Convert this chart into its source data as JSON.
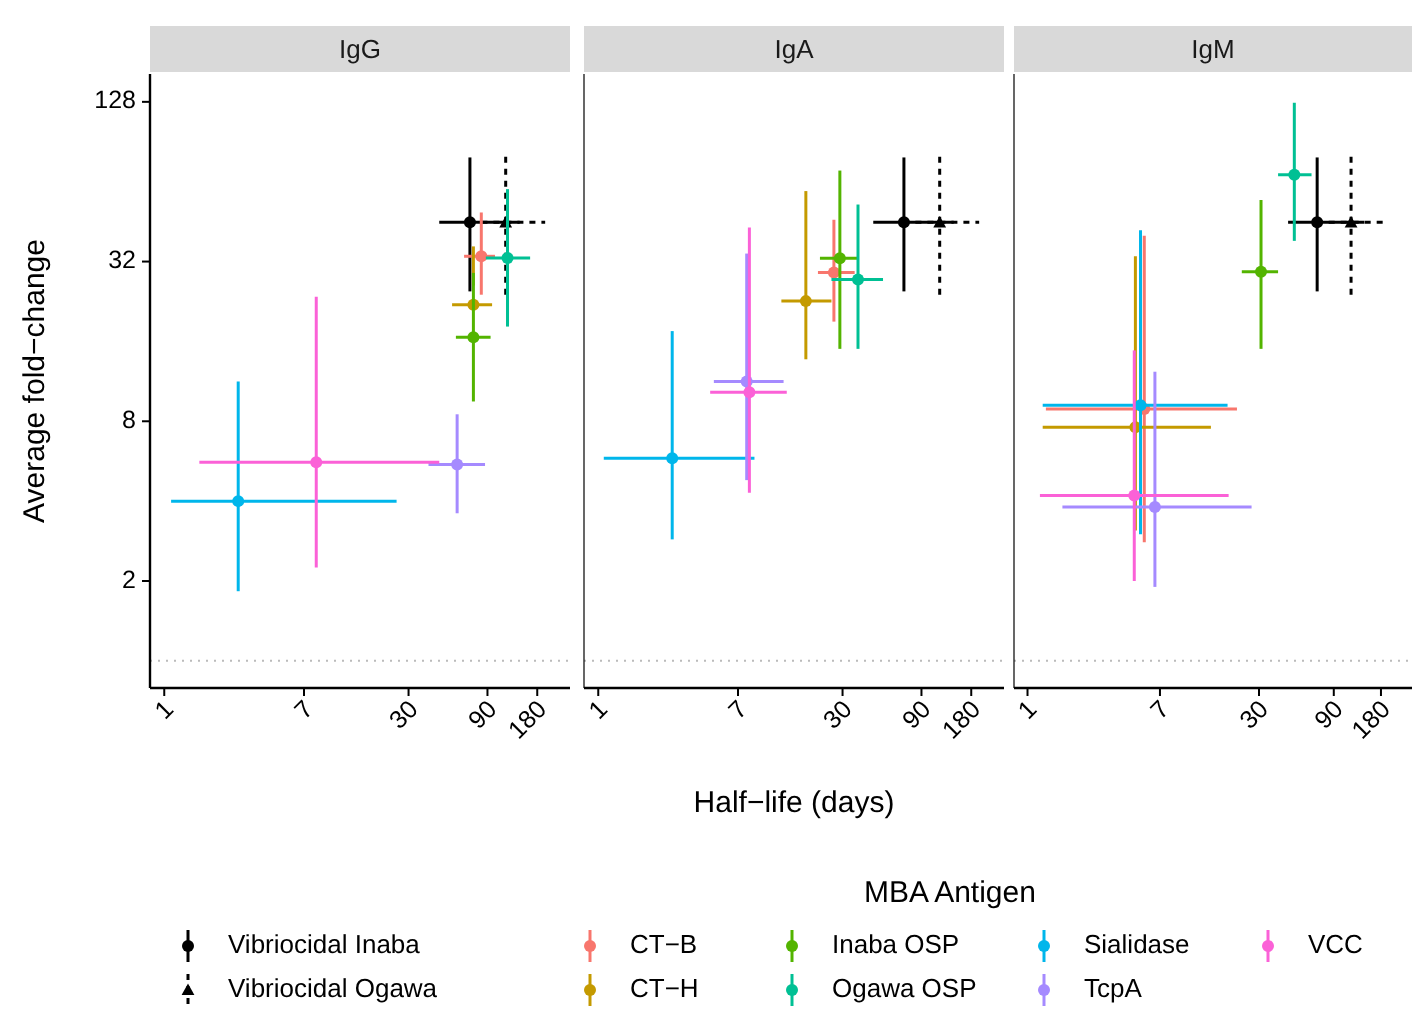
{
  "chart_data": [
    {
      "type": "scatter",
      "title": "IgG",
      "ylabel": "Average fold−change",
      "legend": "bottom",
      "legend_title": "MBA Antigen",
      "log": "xy",
      "marker": "circle",
      "line_style": "solid",
      "xlim": [
        0.82,
        284
      ],
      "xticks": [
        1,
        7,
        30,
        90,
        180
      ],
      "ylim": [
        0.79,
        163
      ],
      "yticks": [
        2,
        8,
        32,
        128
      ],
      "ref_lines": [
        {
          "axis": "y",
          "value": 1,
          "color": "#bbbbbb",
          "line_style": "dotted"
        }
      ],
      "series": [
        {
          "name": "Vibriocidal Inaba",
          "color": "#000000",
          "marker": "circle",
          "line_style": "solid",
          "x": [
            70.5
          ],
          "values": [
            45
          ],
          "xerrors": [
            [
              46,
              141
            ]
          ],
          "errors": [
            [
              24.7,
              79
            ]
          ]
        },
        {
          "name": "Vibriocidal Ogawa",
          "color": "#000000",
          "marker": "triangle",
          "line_style": "dashed",
          "x": [
            116
          ],
          "values": [
            45
          ],
          "xerrors": [
            [
              70,
              201
            ]
          ],
          "errors": [
            [
              24,
              82
            ]
          ]
        },
        {
          "name": "CT−B",
          "color": "#f8766d",
          "x": [
            82.6
          ],
          "values": [
            33.5
          ],
          "xerrors": [
            [
              65,
              100
            ]
          ],
          "errors": [
            [
              24,
              49
            ]
          ]
        },
        {
          "name": "CT−H",
          "color": "#c49a00",
          "x": [
            74
          ],
          "values": [
            22
          ],
          "xerrors": [
            [
              55,
              96
            ]
          ],
          "errors": [
            [
              26,
              36.5
            ]
          ]
        },
        {
          "name": "Inaba OSP",
          "color": "#53b400",
          "x": [
            74
          ],
          "values": [
            16.6
          ],
          "xerrors": [
            [
              58,
              94
            ]
          ],
          "errors": [
            [
              9.5,
              29
            ]
          ]
        },
        {
          "name": "Ogawa OSP",
          "color": "#00c094",
          "x": [
            119
          ],
          "values": [
            33
          ],
          "xerrors": [
            [
              88,
              163
            ]
          ],
          "errors": [
            [
              18.2,
              60
            ]
          ]
        },
        {
          "name": "Sialidase",
          "color": "#00b6eb",
          "x": [
            2.8
          ],
          "values": [
            4
          ],
          "xerrors": [
            [
              1.1,
              25.4
            ]
          ],
          "errors": [
            [
              1.83,
              11.3
            ]
          ]
        },
        {
          "name": "TcpA",
          "color": "#a58aff",
          "x": [
            59
          ],
          "values": [
            5.5
          ],
          "xerrors": [
            [
              39.6,
              87
            ]
          ],
          "errors": [
            [
              3.6,
              8.5
            ]
          ]
        },
        {
          "name": "VCC",
          "color": "#fb61d7",
          "x": [
            8.3
          ],
          "values": [
            5.6
          ],
          "xerrors": [
            [
              1.63,
              46
            ]
          ],
          "errors": [
            [
              2.25,
              23.6
            ]
          ]
        }
      ]
    },
    {
      "type": "scatter",
      "title": "IgA",
      "xlabel": "Half−life (days)",
      "tick_labels": "x",
      "log": "xy",
      "marker": "circle",
      "line_style": "solid",
      "xlim": [
        0.82,
        284
      ],
      "xticks": [
        1,
        7,
        30,
        90,
        180
      ],
      "ylim": [
        0.79,
        163
      ],
      "yticks": [
        2,
        8,
        32,
        128
      ],
      "ref_lines": [
        {
          "axis": "y",
          "value": 1,
          "color": "#bbbbbb",
          "line_style": "dotted"
        }
      ],
      "series": [
        {
          "color": "#000000",
          "marker": "circle",
          "line_style": "solid",
          "x": [
            70.5
          ],
          "values": [
            45
          ],
          "xerrors": [
            [
              46,
              141
            ]
          ],
          "errors": [
            [
              24.7,
              79
            ]
          ]
        },
        {
          "color": "#000000",
          "marker": "triangle",
          "line_style": "dashed",
          "x": [
            116
          ],
          "values": [
            45
          ],
          "xerrors": [
            [
              70,
              201
            ]
          ],
          "errors": [
            [
              24,
              82
            ]
          ]
        },
        {
          "color": "#f8766d",
          "x": [
            26.6
          ],
          "values": [
            29.1
          ],
          "xerrors": [
            [
              21.3,
              35.5
            ]
          ],
          "errors": [
            [
              19,
              46
            ]
          ]
        },
        {
          "color": "#c49a00",
          "x": [
            18
          ],
          "values": [
            22.7
          ],
          "xerrors": [
            [
              12.8,
              25.7
            ]
          ],
          "errors": [
            [
              13.7,
              59
            ]
          ]
        },
        {
          "color": "#53b400",
          "x": [
            28.9
          ],
          "values": [
            32.9
          ],
          "xerrors": [
            [
              21.9,
              37
            ]
          ],
          "errors": [
            [
              15,
              70.5
            ]
          ]
        },
        {
          "color": "#00c094",
          "x": [
            37.2
          ],
          "values": [
            27.4
          ],
          "xerrors": [
            [
              25.7,
              52.7
            ]
          ],
          "errors": [
            [
              15,
              52.5
            ]
          ]
        },
        {
          "color": "#00b6eb",
          "x": [
            2.8
          ],
          "values": [
            5.8
          ],
          "xerrors": [
            [
              1.08,
              8.8
            ]
          ],
          "errors": [
            [
              2.87,
              17.5
            ]
          ]
        },
        {
          "color": "#a58aff",
          "x": [
            7.9
          ],
          "values": [
            11.3
          ],
          "xerrors": [
            [
              5,
              13.2
            ]
          ],
          "errors": [
            [
              4.8,
              34.3
            ]
          ]
        },
        {
          "color": "#fb61d7",
          "x": [
            8.2
          ],
          "values": [
            10.3
          ],
          "xerrors": [
            [
              4.75,
              13.8
            ]
          ],
          "errors": [
            [
              4.3,
              43
            ]
          ]
        }
      ]
    },
    {
      "type": "scatter",
      "title": "IgM",
      "tick_labels": "x",
      "log": "xy",
      "marker": "circle",
      "line_style": "solid",
      "xlim": [
        0.82,
        284
      ],
      "xticks": [
        1,
        7,
        30,
        90,
        180
      ],
      "ylim": [
        0.79,
        163
      ],
      "yticks": [
        2,
        8,
        32,
        128
      ],
      "ref_lines": [
        {
          "axis": "y",
          "value": 1,
          "color": "#bbbbbb",
          "line_style": "dotted"
        }
      ],
      "series": [
        {
          "color": "#000000",
          "marker": "circle",
          "line_style": "solid",
          "x": [
            70.5
          ],
          "values": [
            45
          ],
          "xerrors": [
            [
              46,
              141
            ]
          ],
          "errors": [
            [
              24.7,
              79
            ]
          ]
        },
        {
          "color": "#000000",
          "marker": "triangle",
          "line_style": "dashed",
          "x": [
            116
          ],
          "values": [
            45
          ],
          "xerrors": [
            [
              70,
              201
            ]
          ],
          "errors": [
            [
              24,
              82
            ]
          ]
        },
        {
          "color": "#f8766d",
          "x": [
            5.56
          ],
          "values": [
            8.9
          ],
          "xerrors": [
            [
              1.31,
              21.7
            ]
          ],
          "errors": [
            [
              2.8,
              40
            ]
          ]
        },
        {
          "color": "#c49a00",
          "x": [
            4.88
          ],
          "values": [
            7.6
          ],
          "xerrors": [
            [
              1.25,
              14.8
            ]
          ],
          "errors": [
            [
              3.1,
              33.5
            ]
          ]
        },
        {
          "color": "#53b400",
          "x": [
            30.9
          ],
          "values": [
            29.3
          ],
          "xerrors": [
            [
              23.3,
              39.7
            ]
          ],
          "errors": [
            [
              15,
              54.6
            ]
          ]
        },
        {
          "color": "#00c094",
          "x": [
            50.4
          ],
          "values": [
            68
          ],
          "xerrors": [
            [
              39.7,
              64.9
            ]
          ],
          "errors": [
            [
              38.3,
              127
            ]
          ]
        },
        {
          "color": "#00b6eb",
          "x": [
            5.26
          ],
          "values": [
            9.2
          ],
          "xerrors": [
            [
              1.25,
              18.9
            ]
          ],
          "errors": [
            [
              3,
              42
            ]
          ]
        },
        {
          "color": "#a58aff",
          "x": [
            6.5
          ],
          "values": [
            3.8
          ],
          "xerrors": [
            [
              1.67,
              26.9
            ]
          ],
          "errors": [
            [
              1.9,
              12.3
            ]
          ]
        },
        {
          "color": "#fb61d7",
          "x": [
            4.8
          ],
          "values": [
            4.2
          ],
          "xerrors": [
            [
              1.2,
              19.2
            ]
          ],
          "errors": [
            [
              2,
              14.8
            ]
          ]
        }
      ]
    }
  ]
}
